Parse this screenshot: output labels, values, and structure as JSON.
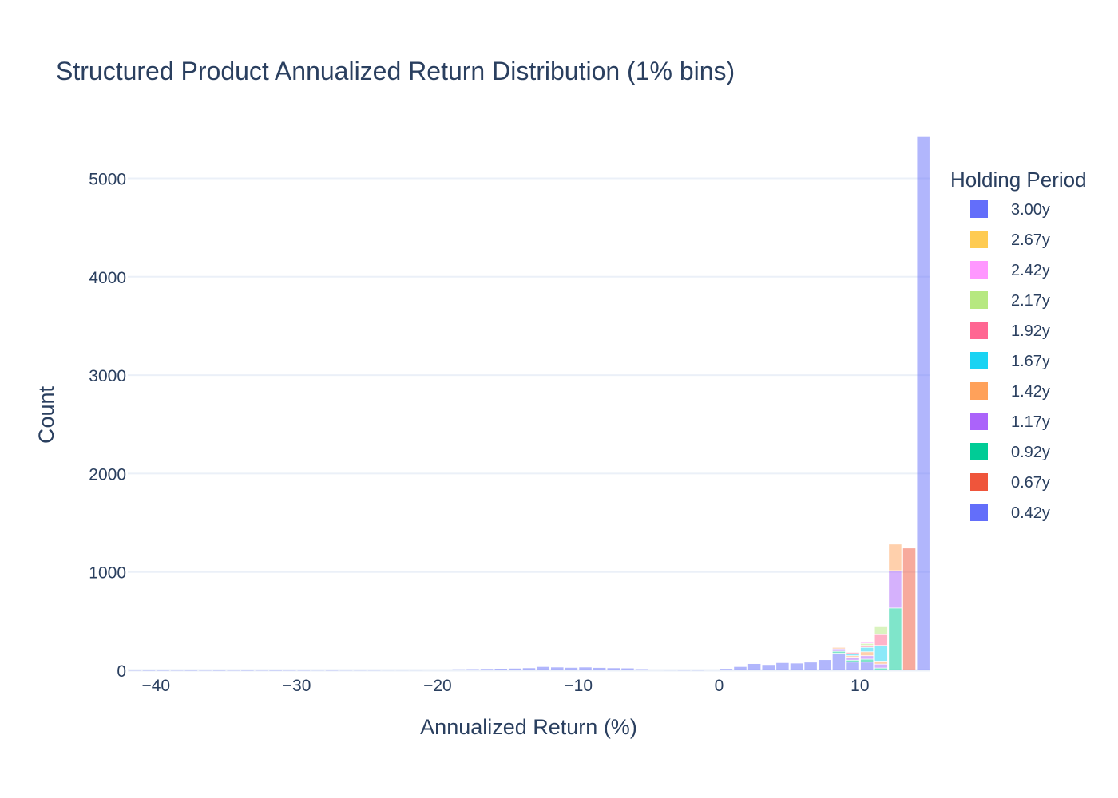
{
  "chart_data": {
    "type": "bar",
    "title": "Structured Product Annualized Return Distribution (1% bins)",
    "xlabel": "Annualized Return (%)",
    "ylabel": "Count",
    "xlim": [
      -42,
      15
    ],
    "ylim": [
      0,
      5450
    ],
    "x_ticks": [
      -40,
      -30,
      -20,
      -10,
      0,
      10
    ],
    "y_ticks": [
      0,
      1000,
      2000,
      3000,
      4000,
      5000
    ],
    "barmode": "stack",
    "bar_opacity": 0.5,
    "grid": true,
    "legend": {
      "title": "Holding Period",
      "placement": "right"
    },
    "series": [
      {
        "name": "3.00y",
        "color": "#636efa",
        "bins": []
      },
      {
        "name": "2.67y",
        "color": "#fecb52",
        "bins": []
      },
      {
        "name": "2.42y",
        "color": "#ff97ff",
        "bins": [
          [
            10.5,
            15
          ]
        ]
      },
      {
        "name": "2.17y",
        "color": "#b6e880",
        "bins": [
          [
            10.5,
            20
          ],
          [
            11.5,
            80
          ]
        ]
      },
      {
        "name": "1.92y",
        "color": "#ff6692",
        "bins": [
          [
            9.5,
            15
          ],
          [
            10.5,
            20
          ],
          [
            11.5,
            110
          ]
        ]
      },
      {
        "name": "1.67y",
        "color": "#19d3f3",
        "bins": [
          [
            9.5,
            20
          ],
          [
            10.5,
            45
          ],
          [
            11.5,
            160
          ]
        ]
      },
      {
        "name": "1.42y",
        "color": "#ffa15a",
        "bins": [
          [
            8.5,
            15
          ],
          [
            9.5,
            15
          ],
          [
            10.5,
            40
          ],
          [
            11.5,
            30
          ],
          [
            12.5,
            270
          ]
        ]
      },
      {
        "name": "1.17y",
        "color": "#ab63fa",
        "bins": [
          [
            8.5,
            25
          ],
          [
            9.5,
            30
          ],
          [
            10.5,
            35
          ],
          [
            11.5,
            40
          ],
          [
            12.5,
            380
          ]
        ]
      },
      {
        "name": "0.92y",
        "color": "#00cc96",
        "bins": [
          [
            8.5,
            20
          ],
          [
            9.5,
            20
          ],
          [
            10.5,
            30
          ],
          [
            11.5,
            20
          ],
          [
            12.5,
            630
          ]
        ]
      },
      {
        "name": "0.67y",
        "color": "#ef553b",
        "bins": [
          [
            13.5,
            1240
          ]
        ]
      },
      {
        "name": "0.42y",
        "color": "#636efa",
        "bins": [
          [
            -41.5,
            4
          ],
          [
            -40.5,
            3
          ],
          [
            -39.5,
            3
          ],
          [
            -38.5,
            4
          ],
          [
            -37.5,
            3
          ],
          [
            -36.5,
            4
          ],
          [
            -35.5,
            3
          ],
          [
            -34.5,
            4
          ],
          [
            -33.5,
            3
          ],
          [
            -32.5,
            4
          ],
          [
            -31.5,
            3
          ],
          [
            -30.5,
            4
          ],
          [
            -29.5,
            4
          ],
          [
            -28.5,
            5
          ],
          [
            -27.5,
            4
          ],
          [
            -26.5,
            5
          ],
          [
            -25.5,
            5
          ],
          [
            -24.5,
            5
          ],
          [
            -23.5,
            6
          ],
          [
            -22.5,
            6
          ],
          [
            -21.5,
            6
          ],
          [
            -20.5,
            7
          ],
          [
            -19.5,
            8
          ],
          [
            -18.5,
            10
          ],
          [
            -17.5,
            12
          ],
          [
            -16.5,
            14
          ],
          [
            -15.5,
            16
          ],
          [
            -14.5,
            18
          ],
          [
            -13.5,
            22
          ],
          [
            -12.5,
            35
          ],
          [
            -11.5,
            30
          ],
          [
            -10.5,
            26
          ],
          [
            -9.5,
            30
          ],
          [
            -8.5,
            25
          ],
          [
            -7.5,
            22
          ],
          [
            -6.5,
            20
          ],
          [
            -5.5,
            12
          ],
          [
            -4.5,
            8
          ],
          [
            -3.5,
            6
          ],
          [
            -2.5,
            5
          ],
          [
            -1.5,
            5
          ],
          [
            -0.5,
            8
          ],
          [
            0.5,
            15
          ],
          [
            1.5,
            35
          ],
          [
            2.5,
            65
          ],
          [
            3.5,
            55
          ],
          [
            4.5,
            75
          ],
          [
            5.5,
            70
          ],
          [
            6.5,
            80
          ],
          [
            7.5,
            105
          ],
          [
            8.5,
            170
          ],
          [
            9.5,
            80
          ],
          [
            10.5,
            80
          ],
          [
            11.5,
            0
          ],
          [
            12.5,
            0
          ],
          [
            13.5,
            0
          ],
          [
            14.5,
            5420
          ]
        ]
      }
    ]
  }
}
